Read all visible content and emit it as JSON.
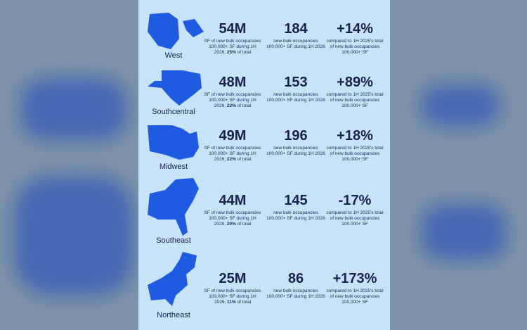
{
  "rows": [
    {
      "region": "West",
      "sf": "54M",
      "sf_desc_pre": "SF of new bulk occupancies 100,000+ SF during 1H 2026, ",
      "sf_desc_bold": "25%",
      "sf_desc_post": " of total",
      "count": "184",
      "count_desc": "new bulk occupancies 100,000+ SF during 1H 2026",
      "change": "+14%",
      "change_desc": "compared to 1H 2025's total of new bulk occupancies 100,000+ SF"
    },
    {
      "region": "Southcentral",
      "sf": "48M",
      "sf_desc_pre": "SF of new bulk occupancies 100,000+ SF during 1H 2026, ",
      "sf_desc_bold": "22%",
      "sf_desc_post": " of total",
      "count": "153",
      "count_desc": "new bulk occupancies 100,000+ SF during 1H 2026",
      "change": "+89%",
      "change_desc": "compared to 1H 2025's total of new bulk occupancies 100,000+ SF"
    },
    {
      "region": "Midwest",
      "sf": "49M",
      "sf_desc_pre": "SF of new bulk occupancies 100,000+ SF during 1H 2026, ",
      "sf_desc_bold": "22%",
      "sf_desc_post": " of total",
      "count": "196",
      "count_desc": "new bulk occupancies 100,000+ SF during 1H 2026",
      "change": "+18%",
      "change_desc": "compared to 1H 2025's total of new bulk occupancies 100,000+ SF"
    },
    {
      "region": "Southeast",
      "sf": "44M",
      "sf_desc_pre": "SF of new bulk occupancies 100,000+ SF during 1H 2026, ",
      "sf_desc_bold": "20%",
      "sf_desc_post": " of total",
      "count": "145",
      "count_desc": "new bulk occupancies 100,000+ SF during 1H 2026",
      "change": "-17%",
      "change_desc": "compared to 1H 2025's total of new bulk occupancies 100,000+ SF"
    },
    {
      "region": "Northeast",
      "sf": "25M",
      "sf_desc_pre": "SF of new bulk occupancies 100,000+ SF during 1H 2026, ",
      "sf_desc_bold": "11%",
      "sf_desc_post": " of total",
      "count": "86",
      "count_desc": "new bulk occupancies 100,000+ SF during 1H 2026",
      "change": "+173%",
      "change_desc": "compared to 1H 2025's total of new bulk occupancies 100,000+ SF"
    }
  ]
}
